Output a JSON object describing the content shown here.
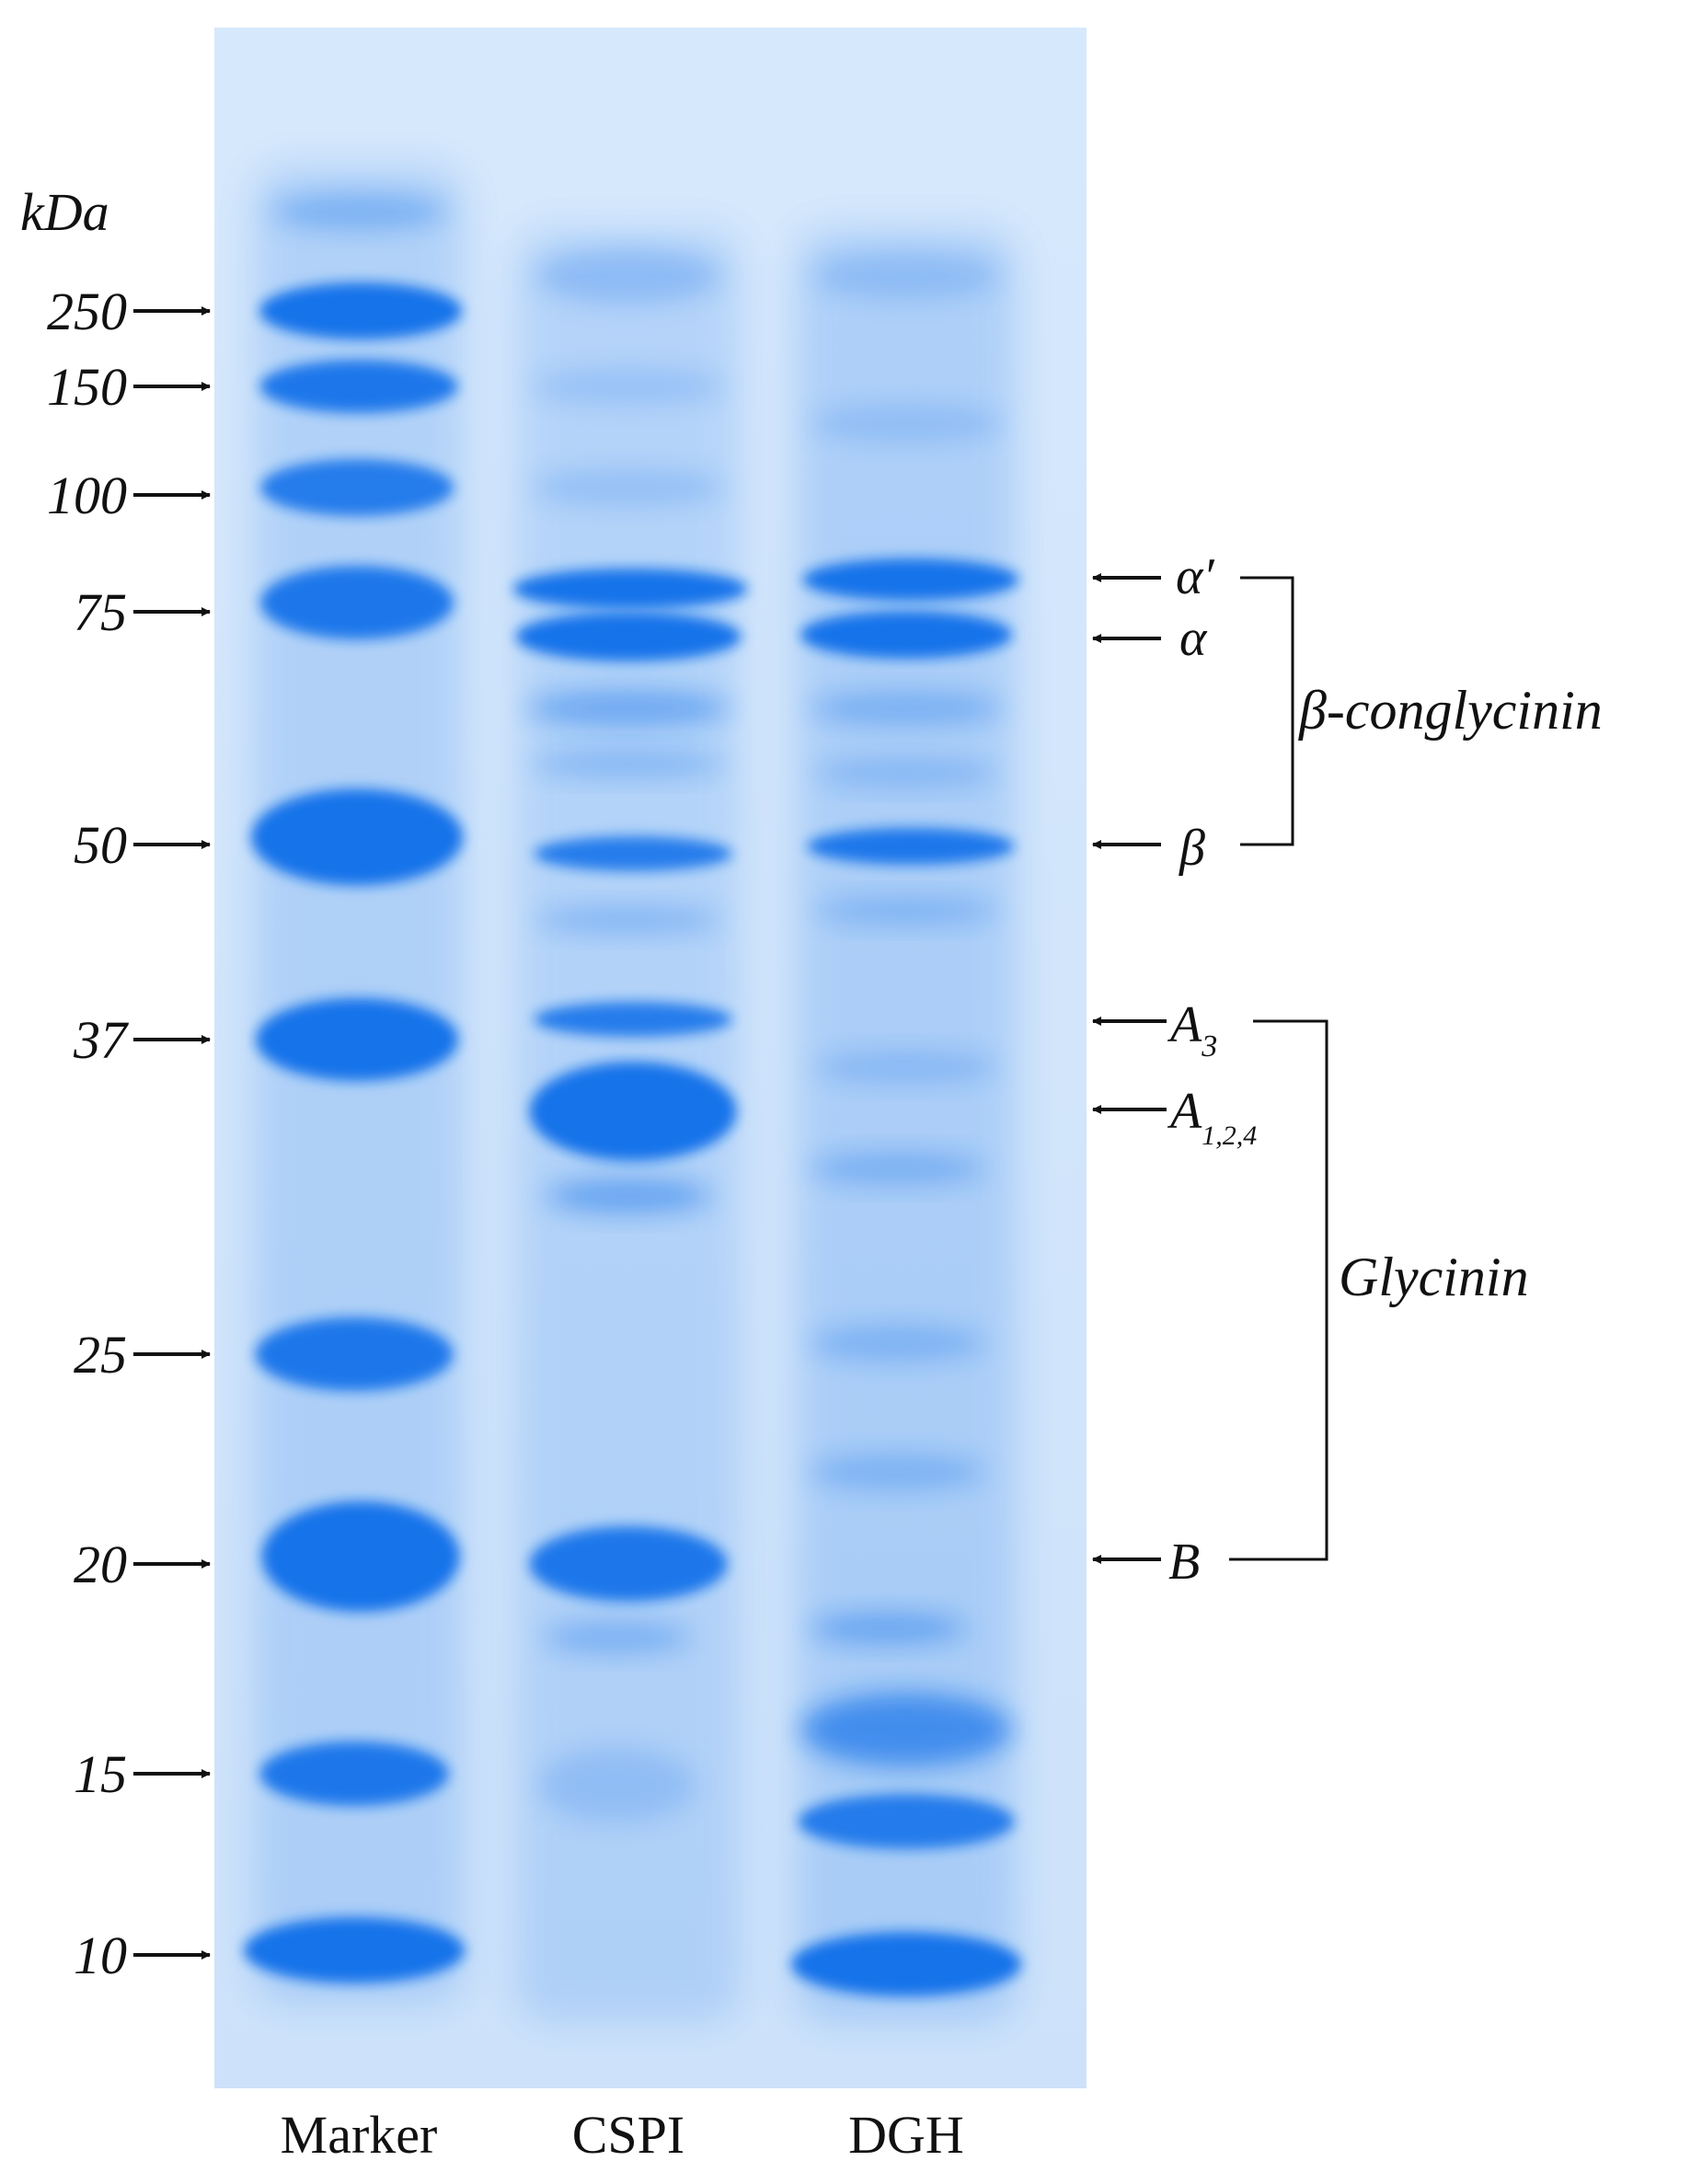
{
  "unit_label": "kDa",
  "marker_labels": [
    "250",
    "150",
    "100",
    "75",
    "50",
    "37",
    "25",
    "20",
    "15",
    "10"
  ],
  "lanes": [
    "Marker",
    "CSPI",
    "DGH"
  ],
  "band_labels": {
    "alpha_prime": "α′",
    "alpha": "α",
    "beta": "β",
    "a3": "A",
    "a3_sub": "3",
    "a124": "A",
    "a124_sub": "1,2,4",
    "b": "B"
  },
  "groups": {
    "conglycinin": "β-conglycinin",
    "glycinin": "Glycinin"
  },
  "colors": {
    "gel_background": "#cfe4fb",
    "band": "#1473ea",
    "text": "#111111"
  }
}
